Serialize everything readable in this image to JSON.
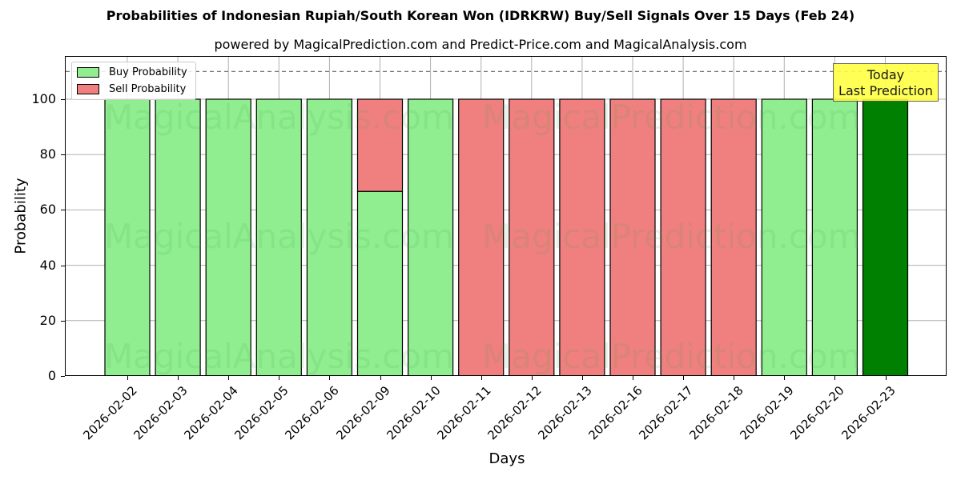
{
  "header": {
    "title": "Probabilities of Indonesian Rupiah/South Korean Won (IDRKRW) Buy/Sell Signals Over 15 Days (Feb 24)",
    "subtitle": "powered by MagicalPrediction.com and Predict-Price.com and MagicalAnalysis.com"
  },
  "axes": {
    "xlabel": "Days",
    "ylabel": "Probability",
    "yticks": [
      "0",
      "20",
      "40",
      "60",
      "80",
      "100"
    ]
  },
  "legend": {
    "buy_label": "Buy Probability",
    "sell_label": "Sell Probability"
  },
  "annotation": {
    "line1": "Today",
    "line2": "Last Prediction"
  },
  "watermarks": [
    "MagicalAnalysis.com",
    "MagicalPrediction.com"
  ],
  "colors": {
    "buy": "#90ee90",
    "sell": "#f08080",
    "today": "#008000",
    "annotation_bg": "#ffff44",
    "grid": "#b0b0b0"
  },
  "chart_data": {
    "type": "bar",
    "stacked": true,
    "title": "Probabilities of Indonesian Rupiah/South Korean Won (IDRKRW) Buy/Sell Signals Over 15 Days (Feb 24)",
    "subtitle": "powered by MagicalPrediction.com and Predict-Price.com and MagicalAnalysis.com",
    "xlabel": "Days",
    "ylabel": "Probability",
    "ylim": [
      0,
      115
    ],
    "yticks": [
      0,
      20,
      40,
      60,
      80,
      100
    ],
    "grid": true,
    "legend_position": "upper left",
    "reference_line": {
      "y": 110,
      "style": "dashed"
    },
    "categories": [
      "2026-02-02",
      "2026-02-03",
      "2026-02-04",
      "2026-02-05",
      "2026-02-06",
      "2026-02-09",
      "2026-02-10",
      "2026-02-11",
      "2026-02-12",
      "2026-02-13",
      "2026-02-16",
      "2026-02-17",
      "2026-02-18",
      "2026-02-19",
      "2026-02-20",
      "2026-02-23"
    ],
    "series": [
      {
        "name": "Buy Probability",
        "values": [
          100,
          100,
          100,
          100,
          100,
          66.7,
          100,
          0,
          0,
          0,
          0,
          0,
          0,
          100,
          100,
          100
        ]
      },
      {
        "name": "Sell Probability",
        "values": [
          0,
          0,
          0,
          0,
          0,
          33.3,
          0,
          100,
          100,
          100,
          100,
          100,
          100,
          0,
          0,
          0
        ]
      }
    ],
    "annotations": [
      {
        "text": "Today\nLast Prediction",
        "x": "2026-02-23",
        "y": 105
      }
    ],
    "highlight": {
      "category": "2026-02-23",
      "color": "#008000"
    }
  }
}
